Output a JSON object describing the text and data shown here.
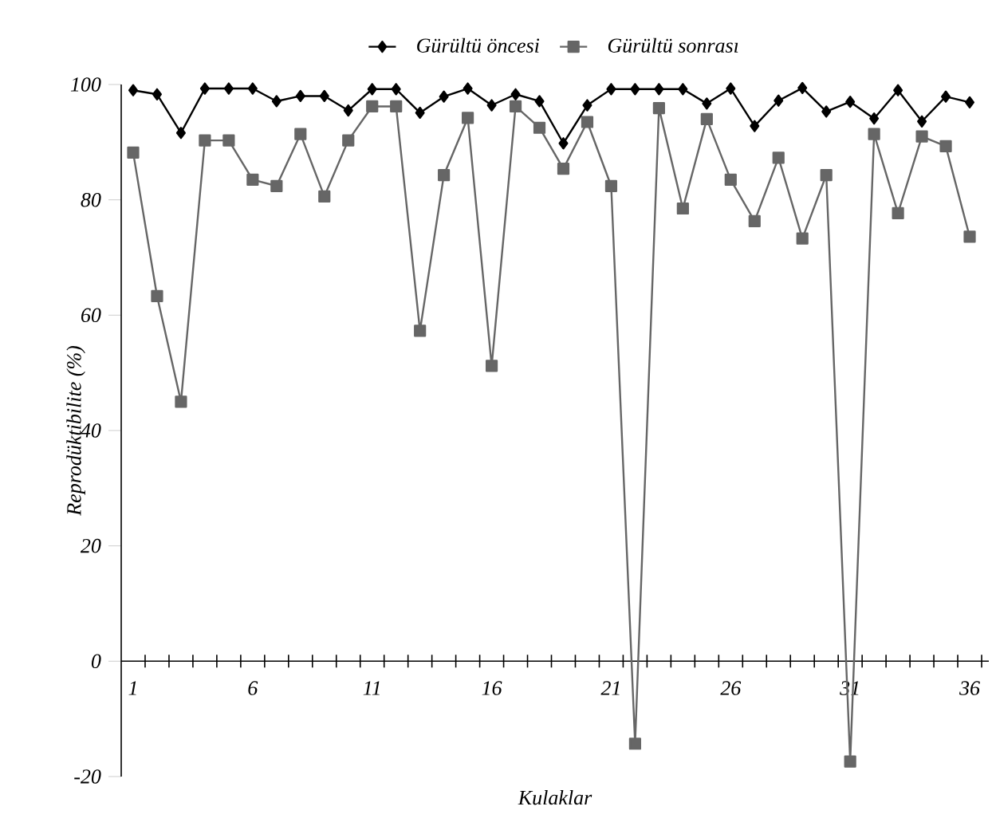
{
  "chart_data": {
    "type": "line",
    "xlabel": "Kulaklar",
    "ylabel": "Reprodüktibilite (%)",
    "x": [
      1,
      2,
      3,
      4,
      5,
      6,
      7,
      8,
      9,
      10,
      11,
      12,
      13,
      14,
      15,
      16,
      17,
      18,
      19,
      20,
      21,
      22,
      23,
      24,
      25,
      26,
      27,
      28,
      29,
      30,
      31,
      32,
      33,
      34,
      35,
      36
    ],
    "series": [
      {
        "name": "Gürültü öncesi",
        "color": "#000000",
        "marker": "diamond",
        "values": [
          99,
          98.3,
          91.6,
          99.3,
          99.3,
          99.3,
          97.1,
          98,
          98,
          95.5,
          99.2,
          99.2,
          95.1,
          97.9,
          99.3,
          96.4,
          98.3,
          97.1,
          89.8,
          96.4,
          99.2,
          99.2,
          99.2,
          99.2,
          96.7,
          99.3,
          92.8,
          97.2,
          99.4,
          95.3,
          97,
          94.1,
          99,
          93.6,
          97.9,
          96.9
        ]
      },
      {
        "name": "Gürültü sonrası",
        "color": "#666666",
        "marker": "square",
        "values": [
          88.2,
          63.3,
          45,
          90.3,
          90.3,
          83.5,
          82.4,
          91.4,
          80.6,
          90.3,
          96.2,
          96.2,
          57.3,
          84.3,
          94.2,
          51.2,
          96.2,
          92.5,
          85.4,
          93.5,
          82.4,
          -14.3,
          95.9,
          78.5,
          94,
          83.5,
          76.3,
          87.3,
          73.3,
          84.3,
          -17.4,
          91.4,
          77.7,
          91,
          89.3,
          73.6
        ]
      }
    ],
    "xlim": [
      0.5,
      36.8
    ],
    "xticks": [
      1,
      6,
      11,
      16,
      21,
      26,
      31,
      36,
      {
        "value": 1.5,
        "label": null
      },
      {
        "value": 2.5,
        "label": null
      },
      {
        "value": 3.5,
        "label": null
      },
      {
        "value": 4.5,
        "label": null
      },
      {
        "value": 5.5,
        "label": null
      },
      {
        "value": 6.5,
        "label": null
      },
      {
        "value": 7.5,
        "label": null
      },
      {
        "value": 8.5,
        "label": null
      },
      {
        "value": 9.5,
        "label": null
      },
      {
        "value": 10.5,
        "label": null
      },
      {
        "value": 11.5,
        "label": null
      },
      {
        "value": 12.5,
        "label": null
      },
      {
        "value": 13.5,
        "label": null
      },
      {
        "value": 14.5,
        "label": null
      },
      {
        "value": 15.5,
        "label": null
      },
      {
        "value": 16.5,
        "label": null
      },
      {
        "value": 17.5,
        "label": null
      },
      {
        "value": 18.5,
        "label": null
      },
      {
        "value": 19.5,
        "label": null
      },
      {
        "value": 20.5,
        "label": null
      },
      {
        "value": 21.5,
        "label": null
      },
      {
        "value": 22.5,
        "label": null
      },
      {
        "value": 23.5,
        "label": null
      },
      {
        "value": 24.5,
        "label": null
      },
      {
        "value": 25.5,
        "label": null
      },
      {
        "value": 26.5,
        "label": null
      },
      {
        "value": 27.5,
        "label": null
      },
      {
        "value": 28.5,
        "label": null
      },
      {
        "value": 29.5,
        "label": null
      },
      {
        "value": 30.5,
        "label": null
      },
      {
        "value": 31.5,
        "label": null
      },
      {
        "value": 32.5,
        "label": null
      },
      {
        "value": 33.5,
        "label": null
      },
      {
        "value": 34.5,
        "label": null
      },
      {
        "value": 35.5,
        "label": null
      },
      {
        "value": 36.5,
        "label": null
      }
    ],
    "ylim": [
      -20,
      100
    ],
    "yticks": [
      -20,
      0,
      20,
      40,
      60,
      80,
      100
    ],
    "legend": "top",
    "grid": false,
    "line_style": "solid"
  }
}
